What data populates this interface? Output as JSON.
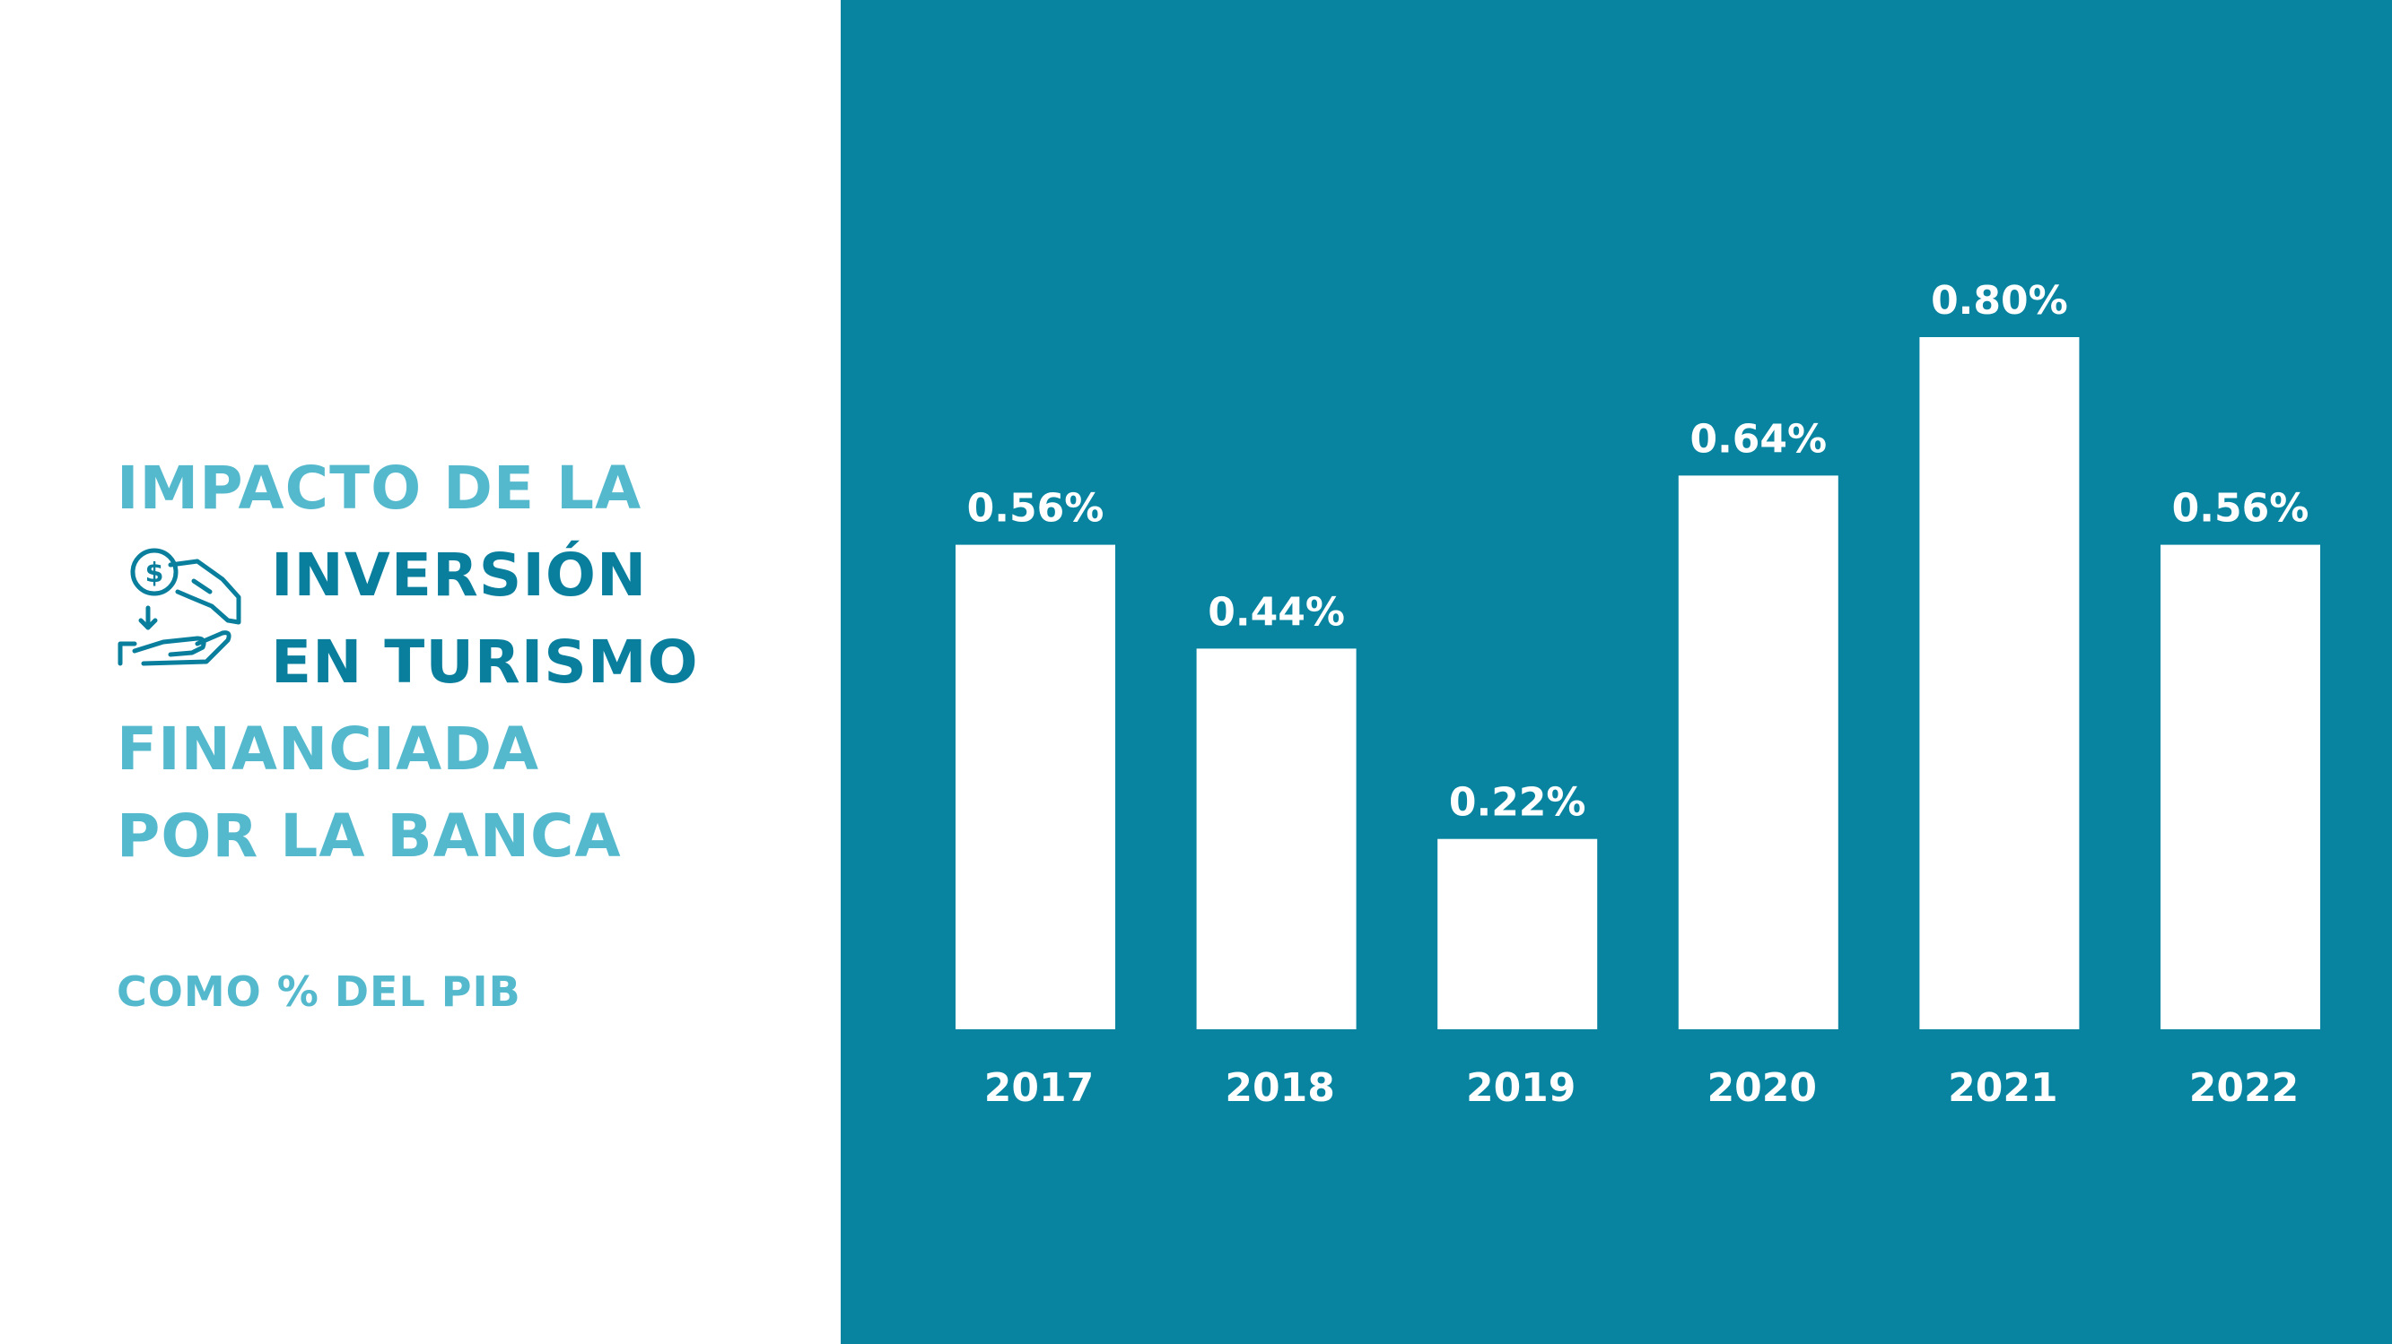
{
  "title_lines": [
    "IMPACTO DE LA",
    "INVERSIÓN",
    "EN TURISMO",
    "FINANCIADA",
    "POR LA BANCA"
  ],
  "subtitle": "COMO % DEL PIB",
  "colors": {
    "background_panel": "#0884a0",
    "bar": "#ffffff",
    "title_light": "#55b9cd",
    "title_dark": "#0a7f9d"
  },
  "icon": "hand-coin-investment-icon",
  "chart_data": {
    "type": "bar",
    "categories": [
      "2017",
      "2018",
      "2019",
      "2020",
      "2021",
      "2022"
    ],
    "values": [
      0.56,
      0.44,
      0.22,
      0.64,
      0.8,
      0.56
    ],
    "data_labels": [
      "0.56%",
      "0.44%",
      "0.22%",
      "0.64%",
      "0.80%",
      "0.56%"
    ],
    "ylim": [
      0,
      0.8
    ],
    "grid": false,
    "legend": "none"
  }
}
